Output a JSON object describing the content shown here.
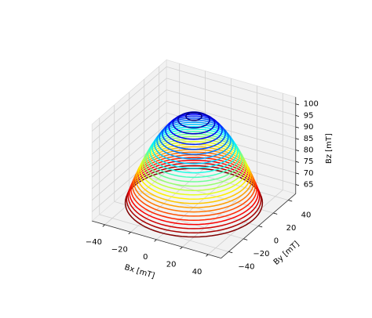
{
  "chart_data": {
    "type": "contour3d",
    "x_label": "Bx [mT]",
    "y_label": "By [mT]",
    "z_label": "Bz [mT]",
    "levels": [
      63,
      64.5,
      66,
      67.5,
      69,
      70.5,
      72,
      73.5,
      75,
      76.5,
      78,
      79.5,
      81,
      82.5,
      84,
      85.5,
      87,
      88.5,
      90,
      91.5,
      93,
      94.5,
      96,
      97.5,
      99,
      100.5
    ],
    "radii": [
      46.0,
      45.1,
      44.1,
      43.2,
      42.2,
      41.2,
      40.2,
      39.1,
      38.1,
      36.9,
      35.8,
      34.6,
      33.4,
      32.1,
      30.8,
      29.4,
      27.9,
      26.4,
      24.7,
      23.0,
      21.1,
      19.0,
      16.7,
      14.0,
      10.6,
      5.3
    ],
    "colormap": "jet_r",
    "xlim": [
      -50,
      50
    ],
    "ylim": [
      -50,
      50
    ],
    "zlim": [
      61,
      103
    ],
    "xticks": [
      {
        "value": -40,
        "label": "−40"
      },
      {
        "value": -20,
        "label": "−20"
      },
      0,
      20,
      40
    ],
    "yticks": [
      {
        "value": -40,
        "label": "−40"
      },
      {
        "value": -20,
        "label": "−20"
      },
      0,
      20,
      40
    ],
    "zticks": [
      65,
      70,
      75,
      80,
      85,
      90,
      95,
      100
    ],
    "grid": true
  }
}
